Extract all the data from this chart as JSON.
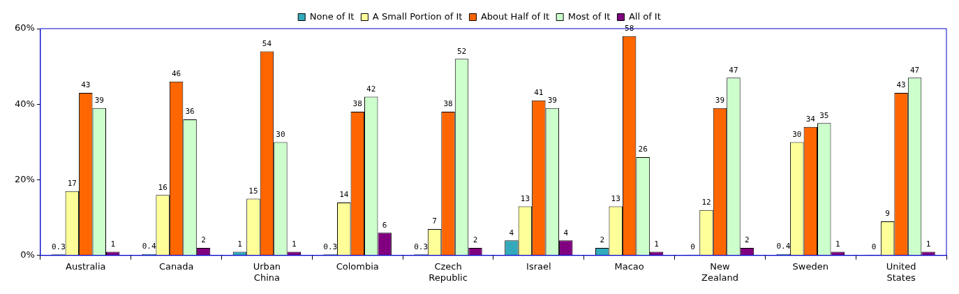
{
  "chart_data": {
    "type": "bar",
    "categories": [
      "Australia",
      "Canada",
      "Urban China",
      "Colombia",
      "Czech Republic",
      "Israel",
      "Macao",
      "New Zealand",
      "Sweden",
      "United States"
    ],
    "series": [
      {
        "name": "None of It",
        "color": "#33aabb",
        "values": [
          0.3,
          0.4,
          1,
          0.3,
          0.3,
          4,
          2,
          0,
          0.4,
          0
        ]
      },
      {
        "name": "A Small Portion of It",
        "color": "#ffff99",
        "values": [
          17,
          16,
          15,
          14,
          7,
          13,
          13,
          12,
          30,
          9
        ]
      },
      {
        "name": "About Half of It",
        "color": "#ff6600",
        "values": [
          43,
          46,
          54,
          38,
          38,
          41,
          58,
          39,
          34,
          43
        ]
      },
      {
        "name": "Most of It",
        "color": "#ccffcc",
        "values": [
          39,
          36,
          30,
          42,
          52,
          39,
          26,
          47,
          35,
          47
        ]
      },
      {
        "name": "All of It",
        "color": "#800080",
        "values": [
          1,
          2,
          1,
          6,
          2,
          4,
          1,
          2,
          1,
          1
        ]
      }
    ],
    "ylim": [
      0,
      60
    ],
    "yticks": [
      {
        "value": 0,
        "label": "0%"
      },
      {
        "value": 20,
        "label": "20%"
      },
      {
        "value": 40,
        "label": "40%"
      },
      {
        "value": 60,
        "label": "60%"
      }
    ],
    "grid": false,
    "legend": "top",
    "data_labels": true
  }
}
